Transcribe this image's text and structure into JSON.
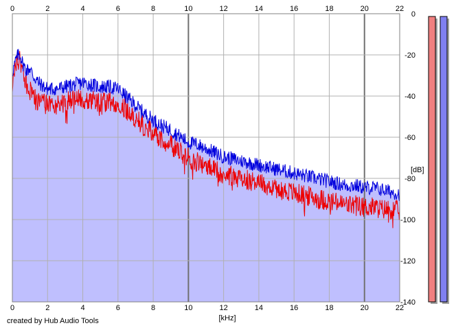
{
  "footer_text": "created by Hub Audio Tools",
  "chart_data": {
    "type": "area",
    "title": "",
    "xlabel": "[kHz]",
    "ylabel": "[dB]",
    "xlim": [
      0,
      22
    ],
    "ylim": [
      -140,
      0
    ],
    "x_ticks": [
      "0",
      "2",
      "4",
      "6",
      "8",
      "10",
      "12",
      "14",
      "16",
      "18",
      "20",
      "22"
    ],
    "y_ticks": [
      "0",
      "-20",
      "-40",
      "-60",
      "-80",
      "-100",
      "-120",
      "-140"
    ],
    "grid": true,
    "colors": {
      "fill": "#bfbffe",
      "blue": "#0000dd",
      "red": "#ee0000",
      "grid": "#b0b0b0",
      "meter_left": "#f08080",
      "meter_right": "#8080f0"
    },
    "series": [
      {
        "color_key": "blue",
        "x": [
          0,
          0.1,
          0.2,
          0.3,
          0.4,
          0.5,
          0.6,
          0.8,
          1,
          1.2,
          1.5,
          1.8,
          2,
          2.5,
          3,
          3.5,
          4,
          4.5,
          5,
          5.5,
          6,
          6.5,
          7,
          7.5,
          8,
          8.5,
          9,
          9.5,
          10,
          10.5,
          11,
          11.5,
          12,
          12.5,
          13,
          13.5,
          14,
          14.5,
          15,
          15.5,
          16,
          16.5,
          17,
          17.5,
          18,
          18.5,
          19,
          19.5,
          20,
          20.5,
          21,
          21.5,
          22
        ],
        "values": [
          -28,
          -25,
          -22,
          -20,
          -19,
          -21,
          -24,
          -27,
          -26,
          -30,
          -33,
          -35,
          -36,
          -36,
          -35,
          -34,
          -33,
          -34,
          -35,
          -35,
          -36,
          -40,
          -44,
          -48,
          -51,
          -54,
          -56,
          -59,
          -62,
          -63,
          -65,
          -67,
          -69,
          -70,
          -71,
          -72,
          -73,
          -74,
          -75,
          -76,
          -77,
          -78,
          -79,
          -80,
          -81,
          -82,
          -83,
          -83,
          -84,
          -84,
          -85,
          -86,
          -87
        ]
      },
      {
        "color_key": "red",
        "x": [
          0,
          0.1,
          0.2,
          0.3,
          0.4,
          0.5,
          0.6,
          0.8,
          1,
          1.2,
          1.5,
          1.8,
          2,
          2.5,
          3,
          3.5,
          4,
          4.5,
          5,
          5.5,
          6,
          6.5,
          7,
          7.5,
          8,
          8.5,
          9,
          9.5,
          10,
          10.5,
          11,
          11.5,
          12,
          12.5,
          13,
          13.5,
          14,
          14.5,
          15,
          15.5,
          16,
          16.5,
          17,
          17.5,
          18,
          18.5,
          19,
          19.5,
          20,
          20.5,
          21,
          21.5,
          22
        ],
        "values": [
          -33,
          -29,
          -25,
          -22,
          -21,
          -23,
          -28,
          -33,
          -36,
          -39,
          -42,
          -43,
          -43,
          -43,
          -42,
          -41,
          -40,
          -41,
          -42,
          -42,
          -42,
          -46,
          -50,
          -54,
          -57,
          -60,
          -63,
          -66,
          -69,
          -71,
          -73,
          -75,
          -77,
          -78,
          -79,
          -80,
          -81,
          -82,
          -84,
          -85,
          -86,
          -87,
          -88,
          -89,
          -90,
          -91,
          -92,
          -92,
          -93,
          -93,
          -94,
          -94,
          -95
        ]
      }
    ],
    "meters": {
      "left_level": 1.0,
      "right_level": 1.0
    }
  }
}
